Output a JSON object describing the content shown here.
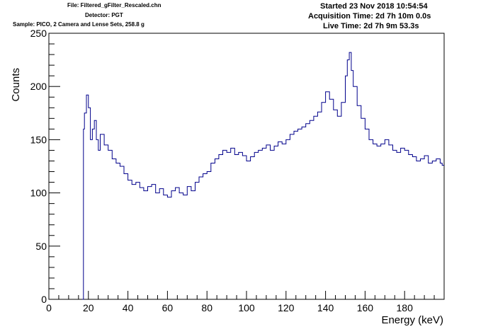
{
  "header": {
    "file": "File: Filtered_gFilter_Rescaled.chn",
    "detector": "Detector: PGT",
    "sample": "Sample: PICO, 2 Camera and Lense Sets, 258.8 g",
    "started": "Started 23 Nov 2018 10:54:54",
    "acquisition_time": "Acquisition Time: 2d 7h 10m 0.0s",
    "live_time": "Live Time: 2d 7h 9m 53.3s"
  },
  "colors": {
    "line": "#00008b",
    "axis": "#000000",
    "background": "#ffffff"
  },
  "chart_data": {
    "type": "line",
    "xlabel": "Energy (keV)",
    "ylabel": "Counts",
    "xlim": [
      0,
      200
    ],
    "ylim": [
      0,
      250
    ],
    "x_ticks": [
      0,
      20,
      40,
      60,
      80,
      100,
      120,
      140,
      160,
      180
    ],
    "y_ticks": [
      0,
      50,
      100,
      150,
      200,
      250
    ],
    "grid": false,
    "legend": "none",
    "series": [
      {
        "x": [
          17,
          17.5,
          18,
          19,
          20,
          21,
          22,
          23,
          24,
          25,
          26,
          28,
          30,
          32,
          34,
          36,
          38,
          40,
          42,
          44,
          46,
          48,
          50,
          52,
          54,
          56,
          58,
          60,
          62,
          64,
          66,
          68,
          70,
          72,
          74,
          76,
          78,
          80,
          82,
          84,
          86,
          88,
          90,
          92,
          94,
          96,
          98,
          100,
          102,
          104,
          106,
          108,
          110,
          112,
          114,
          116,
          118,
          120,
          122,
          124,
          126,
          128,
          130,
          132,
          134,
          136,
          138,
          140,
          142,
          144,
          146,
          148,
          150,
          151,
          152,
          153,
          154,
          156,
          158,
          160,
          162,
          164,
          166,
          168,
          170,
          172,
          174,
          176,
          178,
          180,
          182,
          184,
          186,
          188,
          190,
          192,
          194,
          196,
          198,
          199
        ],
        "values": [
          0,
          160,
          175,
          192,
          180,
          150,
          160,
          168,
          150,
          140,
          155,
          145,
          140,
          132,
          128,
          125,
          118,
          112,
          108,
          110,
          105,
          102,
          106,
          108,
          100,
          104,
          98,
          96,
          102,
          105,
          100,
          98,
          106,
          102,
          110,
          115,
          118,
          120,
          128,
          132,
          136,
          140,
          138,
          142,
          136,
          138,
          135,
          130,
          134,
          138,
          140,
          142,
          145,
          140,
          144,
          148,
          146,
          150,
          155,
          158,
          160,
          162,
          165,
          168,
          172,
          176,
          185,
          195,
          188,
          178,
          172,
          185,
          210,
          225,
          232,
          215,
          200,
          182,
          170,
          160,
          150,
          146,
          144,
          146,
          150,
          145,
          140,
          138,
          142,
          140,
          136,
          134,
          130,
          132,
          135,
          128,
          130,
          132,
          128,
          126
        ]
      }
    ]
  }
}
